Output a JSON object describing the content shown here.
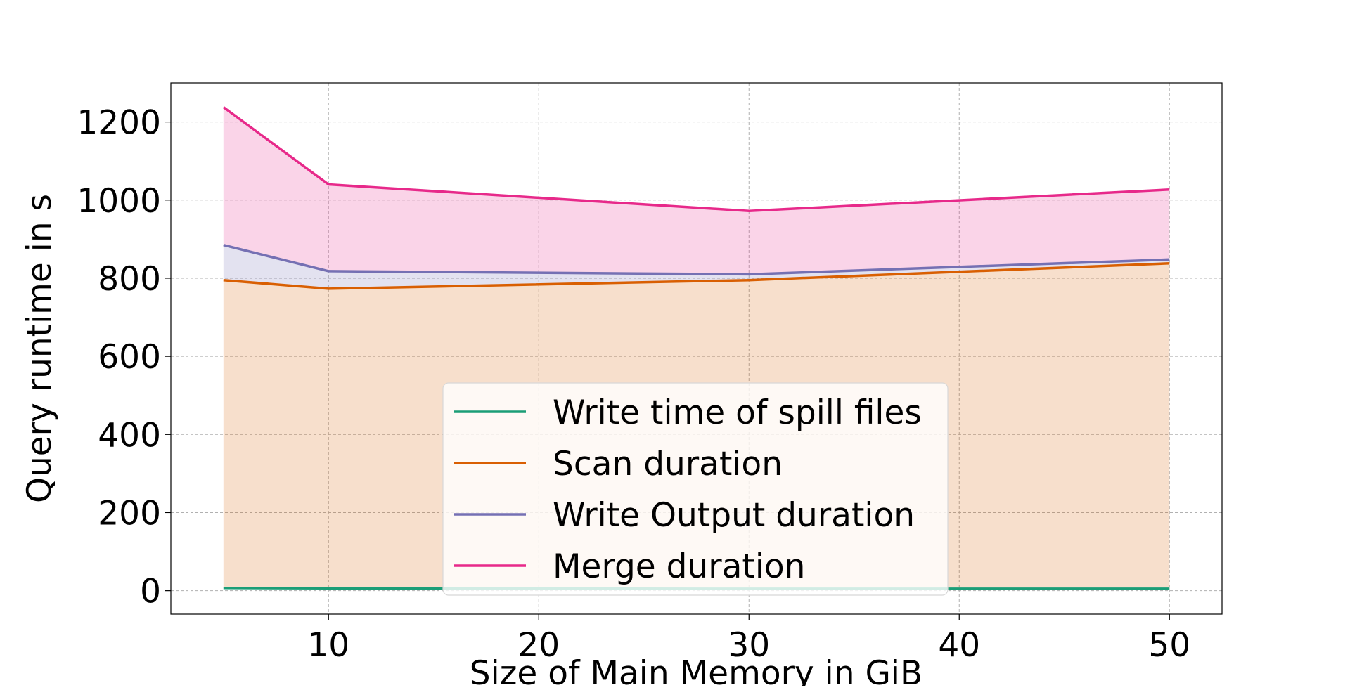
{
  "chart_data": {
    "type": "area",
    "title": "",
    "xlabel": "Size of Main Memory in GiB",
    "ylabel": "Query runtime in s",
    "x": [
      5,
      10,
      30,
      50
    ],
    "xlim": [
      2.5,
      52.5
    ],
    "ylim": [
      -60,
      1300
    ],
    "xticks": [
      10,
      20,
      30,
      40,
      50
    ],
    "yticks": [
      0,
      200,
      400,
      600,
      800,
      1000,
      1200
    ],
    "grid": true,
    "legend": "lower-center",
    "series": [
      {
        "name": "Write time of spill files",
        "color": "#1b9e77",
        "fill_opacity": 0.0,
        "values": [
          7,
          6,
          5,
          5
        ]
      },
      {
        "name": "Scan duration",
        "color": "#d95f02",
        "fill_opacity": 0.2,
        "values": [
          795,
          773,
          795,
          838
        ]
      },
      {
        "name": "Write Output duration",
        "color": "#7570b3",
        "fill_opacity": 0.2,
        "values": [
          885,
          818,
          810,
          848
        ]
      },
      {
        "name": "Merge duration",
        "color": "#e7298a",
        "fill_opacity": 0.2,
        "values": [
          1238,
          1040,
          972,
          1027
        ]
      }
    ]
  }
}
